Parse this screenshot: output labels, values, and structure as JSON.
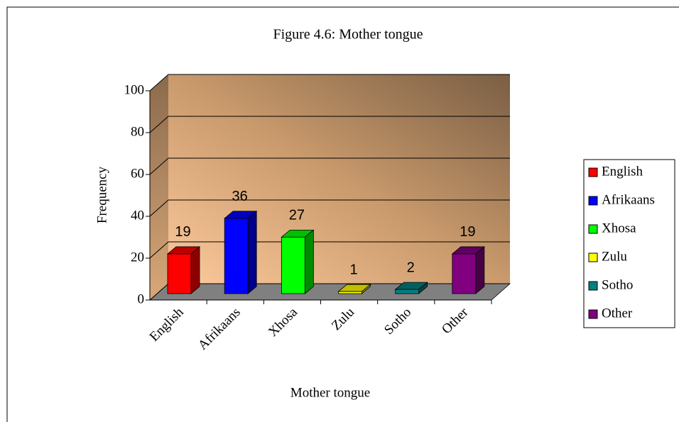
{
  "chart_data": {
    "type": "bar3d",
    "title": "Figure 4.6: Mother tongue",
    "x_label": "Mother tongue",
    "y_label": "Frequency",
    "categories": [
      "English",
      "Afrikaans",
      "Xhosa",
      "Zulu",
      "Sotho",
      "Other"
    ],
    "values": [
      19,
      36,
      27,
      1,
      2,
      19
    ],
    "colors": [
      "#ff0000",
      "#0000ff",
      "#00ff00",
      "#ffff00",
      "#008080",
      "#800080"
    ],
    "ylim": [
      0,
      100
    ],
    "yticks": [
      0,
      20,
      40,
      60,
      80,
      100
    ],
    "grid": true,
    "legend": "right"
  }
}
